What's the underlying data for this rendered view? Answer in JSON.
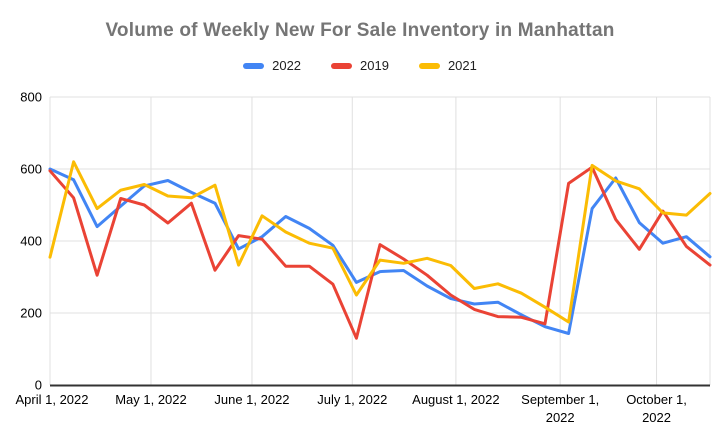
{
  "chart_data": {
    "type": "line",
    "title": "Volume of Weekly New For Sale Inventory in Manhattan",
    "title_color": "#757575",
    "background": "#ffffff",
    "grid": "on",
    "grid_color": "#e0e0e0",
    "axis_color": "#333333",
    "label_color": "#000000",
    "legend_position": "top",
    "ylim": [
      0,
      800
    ],
    "y_ticks": [
      0,
      200,
      400,
      600,
      800
    ],
    "x_ticks": [
      {
        "label": "April 1, 2022",
        "pos": 0
      },
      {
        "label": "May 1, 2022",
        "pos": 0.153
      },
      {
        "label": "June 1, 2022",
        "pos": 0.306
      },
      {
        "label": "July 1, 2022",
        "pos": 0.458
      },
      {
        "label": "August 1, 2022",
        "pos": 0.615
      },
      {
        "label": "September 1,",
        "label2": "2022",
        "pos": 0.773
      },
      {
        "label": "October 1,",
        "label2": "2022",
        "pos": 0.919
      }
    ],
    "x": [
      "Apr 1, 2022",
      "Apr 8, 2022",
      "Apr 15, 2022",
      "Apr 22, 2022",
      "Apr 29, 2022",
      "May 6, 2022",
      "May 13, 2022",
      "May 20, 2022",
      "May 27, 2022",
      "Jun 3, 2022",
      "Jun 10, 2022",
      "Jun 17, 2022",
      "Jun 24, 2022",
      "Jul 1, 2022",
      "Jul 8, 2022",
      "Jul 15, 2022",
      "Jul 22, 2022",
      "Jul 29, 2022",
      "Aug 5, 2022",
      "Aug 12, 2022",
      "Aug 19, 2022",
      "Aug 26, 2022",
      "Sep 2, 2022",
      "Sep 9, 2022",
      "Sep 16, 2022",
      "Sep 23, 2022",
      "Sep 30, 2022",
      "Oct 7, 2022",
      "Oct 14, 2022"
    ],
    "series": [
      {
        "name": "2022",
        "color": "#4285F4",
        "values": [
          600,
          570,
          440,
          497,
          553,
          568,
          535,
          505,
          378,
          412,
          468,
          435,
          388,
          285,
          315,
          318,
          275,
          240,
          225,
          230,
          195,
          162,
          143,
          490,
          575,
          451,
          394,
          412,
          356
        ]
      },
      {
        "name": "2019",
        "color": "#EA4335",
        "values": [
          595,
          520,
          305,
          518,
          500,
          450,
          505,
          319,
          415,
          405,
          330,
          330,
          280,
          130,
          390,
          350,
          305,
          250,
          210,
          190,
          188,
          170,
          560,
          605,
          460,
          377,
          483,
          385,
          333
        ]
      },
      {
        "name": "2021",
        "color": "#FBBC04",
        "values": [
          355,
          620,
          490,
          541,
          557,
          525,
          520,
          555,
          333,
          470,
          425,
          394,
          380,
          250,
          347,
          338,
          352,
          332,
          268,
          281,
          255,
          216,
          175,
          610,
          567,
          545,
          478,
          472,
          532
        ]
      }
    ]
  }
}
